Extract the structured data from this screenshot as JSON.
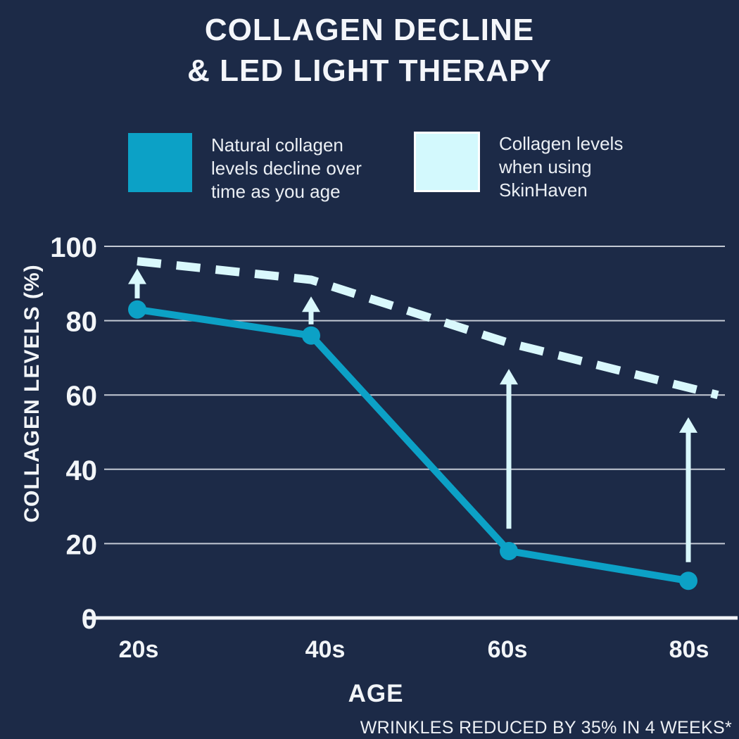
{
  "title": {
    "line1": "COLLAGEN DECLINE",
    "line2": "& LED LIGHT THERAPY"
  },
  "legend": {
    "items": [
      {
        "id": "natural-collagen",
        "swatch_color": "#0ca1c6",
        "lines": [
          "Natural collagen",
          "levels decline over",
          "time as you age"
        ]
      },
      {
        "id": "skinhaven",
        "swatch_color": "#d3f9fd",
        "swatch_border_color": "#ffffff",
        "lines": [
          "Collagen levels",
          "when using",
          "SkinHaven"
        ]
      }
    ]
  },
  "chart_data": {
    "type": "line",
    "categories": [
      "20s",
      "40s",
      "60s",
      "80s"
    ],
    "xlabel": "AGE",
    "ylabel": "COLLAGEN LEVELS (%)",
    "y_ticks": [
      0,
      20,
      40,
      60,
      80,
      100
    ],
    "ylim": [
      0,
      100
    ],
    "grid": true,
    "legend_position": "top",
    "series": [
      {
        "name": "Natural collagen levels decline over time as you age",
        "color": "#0ca1c6",
        "line_style": "solid",
        "markers": true,
        "values": [
          83,
          76,
          18,
          10
        ]
      },
      {
        "name": "Collagen levels when using SkinHaven",
        "color": "#d9f8fc",
        "line_style": "dashed",
        "markers": false,
        "values": [
          96,
          91,
          74,
          60
        ]
      }
    ],
    "improvement_arrows": [
      {
        "category": "20s",
        "from_value": 86,
        "to_value": 94
      },
      {
        "category": "40s",
        "from_value": 79,
        "to_value": 86.5
      },
      {
        "category": "60s",
        "from_value": 24,
        "to_value": 67
      },
      {
        "category": "80s",
        "from_value": 15,
        "to_value": 54
      }
    ]
  },
  "footnote": "WRINKLES REDUCED BY 35% IN 4 WEEKS*",
  "colors": {
    "background": "#1c2a47",
    "text": "#f2f5f8",
    "gridline": "#c3c9d4",
    "axis_line": "#f2f5f8",
    "arrow": "#d9f8fc"
  }
}
